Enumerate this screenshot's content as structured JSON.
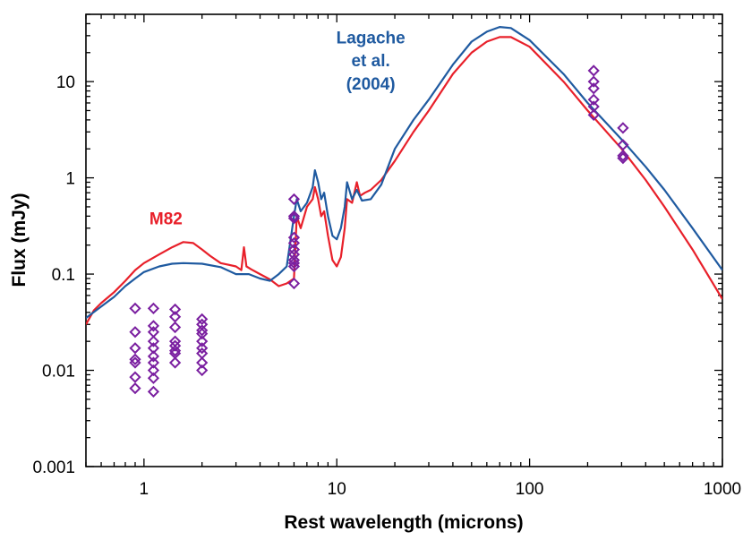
{
  "chart_data": {
    "type": "line",
    "title": "",
    "xlabel": "Rest wavelength (microns)",
    "ylabel": "Flux (mJy)",
    "x_scale": "log",
    "y_scale": "log",
    "xlim": [
      0.5,
      1000
    ],
    "ylim": [
      0.001,
      50
    ],
    "x_ticks": [
      {
        "value": 1,
        "label": "1"
      },
      {
        "value": 10,
        "label": "10"
      },
      {
        "value": 100,
        "label": "100"
      },
      {
        "value": 1000,
        "label": "1000"
      }
    ],
    "y_ticks": [
      {
        "value": 0.001,
        "label": "0.001"
      },
      {
        "value": 0.01,
        "label": "0.01"
      },
      {
        "value": 0.1,
        "label": "0.1"
      },
      {
        "value": 1,
        "label": "1"
      },
      {
        "value": 10,
        "label": "10"
      }
    ],
    "grid": false,
    "legend": "none",
    "annotations": [
      {
        "text": "M82",
        "x": 1.3,
        "y": 0.33,
        "color": "#e8202a"
      },
      {
        "text": "Lagache",
        "x": 15,
        "y": 25,
        "color": "#1f5aa0"
      },
      {
        "text": "et al.",
        "x": 15,
        "y": 14.5,
        "color": "#1f5aa0"
      },
      {
        "text": "(2004)",
        "x": 15,
        "y": 8.3,
        "color": "#1f5aa0"
      }
    ],
    "series": [
      {
        "name": "M82",
        "color": "#e8202a",
        "points": [
          [
            0.5,
            0.03
          ],
          [
            0.55,
            0.042
          ],
          [
            0.6,
            0.05
          ],
          [
            0.7,
            0.065
          ],
          [
            0.8,
            0.085
          ],
          [
            0.9,
            0.11
          ],
          [
            1.0,
            0.13
          ],
          [
            1.2,
            0.16
          ],
          [
            1.4,
            0.19
          ],
          [
            1.6,
            0.215
          ],
          [
            1.8,
            0.21
          ],
          [
            2.0,
            0.18
          ],
          [
            2.2,
            0.155
          ],
          [
            2.5,
            0.13
          ],
          [
            3.0,
            0.12
          ],
          [
            3.2,
            0.11
          ],
          [
            3.3,
            0.19
          ],
          [
            3.4,
            0.12
          ],
          [
            3.6,
            0.112
          ],
          [
            4.0,
            0.1
          ],
          [
            4.5,
            0.088
          ],
          [
            5.0,
            0.075
          ],
          [
            5.5,
            0.08
          ],
          [
            6.0,
            0.09
          ],
          [
            6.2,
            0.4
          ],
          [
            6.5,
            0.3
          ],
          [
            7.0,
            0.5
          ],
          [
            7.5,
            0.6
          ],
          [
            7.7,
            0.8
          ],
          [
            8.0,
            0.6
          ],
          [
            8.3,
            0.4
          ],
          [
            8.6,
            0.45
          ],
          [
            9.0,
            0.25
          ],
          [
            9.5,
            0.14
          ],
          [
            10.0,
            0.12
          ],
          [
            10.5,
            0.15
          ],
          [
            11.0,
            0.3
          ],
          [
            11.3,
            0.6
          ],
          [
            12.0,
            0.55
          ],
          [
            12.7,
            0.9
          ],
          [
            13.2,
            0.65
          ],
          [
            14.0,
            0.7
          ],
          [
            15.0,
            0.75
          ],
          [
            17.0,
            0.95
          ],
          [
            20.0,
            1.5
          ],
          [
            25.0,
            3.0
          ],
          [
            30.0,
            5.0
          ],
          [
            40.0,
            12.0
          ],
          [
            50.0,
            20.0
          ],
          [
            60.0,
            26.0
          ],
          [
            70.0,
            29.0
          ],
          [
            80.0,
            29.0
          ],
          [
            100.0,
            23.0
          ],
          [
            150.0,
            10.0
          ],
          [
            200.0,
            5.0
          ],
          [
            300.0,
            2.0
          ],
          [
            400.0,
            0.95
          ],
          [
            500.0,
            0.5
          ],
          [
            700.0,
            0.18
          ],
          [
            1000.0,
            0.055
          ]
        ]
      },
      {
        "name": "Lagache et al. (2004)",
        "color": "#1f5aa0",
        "points": [
          [
            0.5,
            0.035
          ],
          [
            0.6,
            0.046
          ],
          [
            0.7,
            0.058
          ],
          [
            0.8,
            0.075
          ],
          [
            0.9,
            0.09
          ],
          [
            1.0,
            0.105
          ],
          [
            1.2,
            0.12
          ],
          [
            1.4,
            0.128
          ],
          [
            1.6,
            0.13
          ],
          [
            2.0,
            0.128
          ],
          [
            2.5,
            0.118
          ],
          [
            3.0,
            0.1
          ],
          [
            3.5,
            0.1
          ],
          [
            4.0,
            0.09
          ],
          [
            4.5,
            0.085
          ],
          [
            5.0,
            0.1
          ],
          [
            5.5,
            0.12
          ],
          [
            6.0,
            0.4
          ],
          [
            6.2,
            0.6
          ],
          [
            6.5,
            0.45
          ],
          [
            7.0,
            0.55
          ],
          [
            7.5,
            0.8
          ],
          [
            7.7,
            1.2
          ],
          [
            8.0,
            0.9
          ],
          [
            8.3,
            0.6
          ],
          [
            8.6,
            0.7
          ],
          [
            9.0,
            0.4
          ],
          [
            9.5,
            0.25
          ],
          [
            10.0,
            0.23
          ],
          [
            10.5,
            0.3
          ],
          [
            11.0,
            0.5
          ],
          [
            11.3,
            0.9
          ],
          [
            12.0,
            0.6
          ],
          [
            12.7,
            0.75
          ],
          [
            13.5,
            0.58
          ],
          [
            15.0,
            0.6
          ],
          [
            17.0,
            0.85
          ],
          [
            20.0,
            2.0
          ],
          [
            25.0,
            4.0
          ],
          [
            30.0,
            6.5
          ],
          [
            40.0,
            15.0
          ],
          [
            50.0,
            26.0
          ],
          [
            60.0,
            33.0
          ],
          [
            70.0,
            37.0
          ],
          [
            80.0,
            36.0
          ],
          [
            100.0,
            27.0
          ],
          [
            150.0,
            12.0
          ],
          [
            200.0,
            6.0
          ],
          [
            300.0,
            2.5
          ],
          [
            400.0,
            1.3
          ],
          [
            500.0,
            0.75
          ],
          [
            700.0,
            0.3
          ],
          [
            1000.0,
            0.11
          ]
        ]
      },
      {
        "name": "",
        "type": "scatter",
        "marker": "diamond",
        "color": "#7a1fa0",
        "points": [
          [
            0.9,
            0.044
          ],
          [
            0.9,
            0.025
          ],
          [
            0.9,
            0.017
          ],
          [
            0.9,
            0.013
          ],
          [
            0.9,
            0.012
          ],
          [
            0.9,
            0.0085
          ],
          [
            0.9,
            0.0065
          ],
          [
            1.12,
            0.044
          ],
          [
            1.12,
            0.029
          ],
          [
            1.12,
            0.025
          ],
          [
            1.12,
            0.02
          ],
          [
            1.12,
            0.017
          ],
          [
            1.12,
            0.014
          ],
          [
            1.12,
            0.012
          ],
          [
            1.12,
            0.01
          ],
          [
            1.12,
            0.0083
          ],
          [
            1.12,
            0.006
          ],
          [
            1.45,
            0.043
          ],
          [
            1.45,
            0.036
          ],
          [
            1.45,
            0.028
          ],
          [
            1.45,
            0.02
          ],
          [
            1.45,
            0.018
          ],
          [
            1.45,
            0.016
          ],
          [
            1.45,
            0.015
          ],
          [
            1.45,
            0.012
          ],
          [
            2.0,
            0.034
          ],
          [
            2.0,
            0.03
          ],
          [
            2.0,
            0.026
          ],
          [
            2.0,
            0.024
          ],
          [
            2.0,
            0.02
          ],
          [
            2.0,
            0.017
          ],
          [
            2.0,
            0.015
          ],
          [
            2.0,
            0.012
          ],
          [
            2.0,
            0.01
          ],
          [
            6.0,
            0.6
          ],
          [
            6.0,
            0.4
          ],
          [
            6.0,
            0.38
          ],
          [
            6.0,
            0.24
          ],
          [
            6.0,
            0.21
          ],
          [
            6.0,
            0.18
          ],
          [
            6.0,
            0.16
          ],
          [
            6.0,
            0.14
          ],
          [
            6.0,
            0.13
          ],
          [
            6.0,
            0.12
          ],
          [
            6.0,
            0.08
          ],
          [
            215.0,
            13.0
          ],
          [
            215.0,
            10.0
          ],
          [
            215.0,
            8.5
          ],
          [
            215.0,
            6.5
          ],
          [
            215.0,
            5.5
          ],
          [
            215.0,
            4.5
          ],
          [
            305.0,
            3.3
          ],
          [
            305.0,
            2.2
          ],
          [
            305.0,
            1.7
          ],
          [
            305.0,
            1.6
          ]
        ]
      }
    ]
  }
}
